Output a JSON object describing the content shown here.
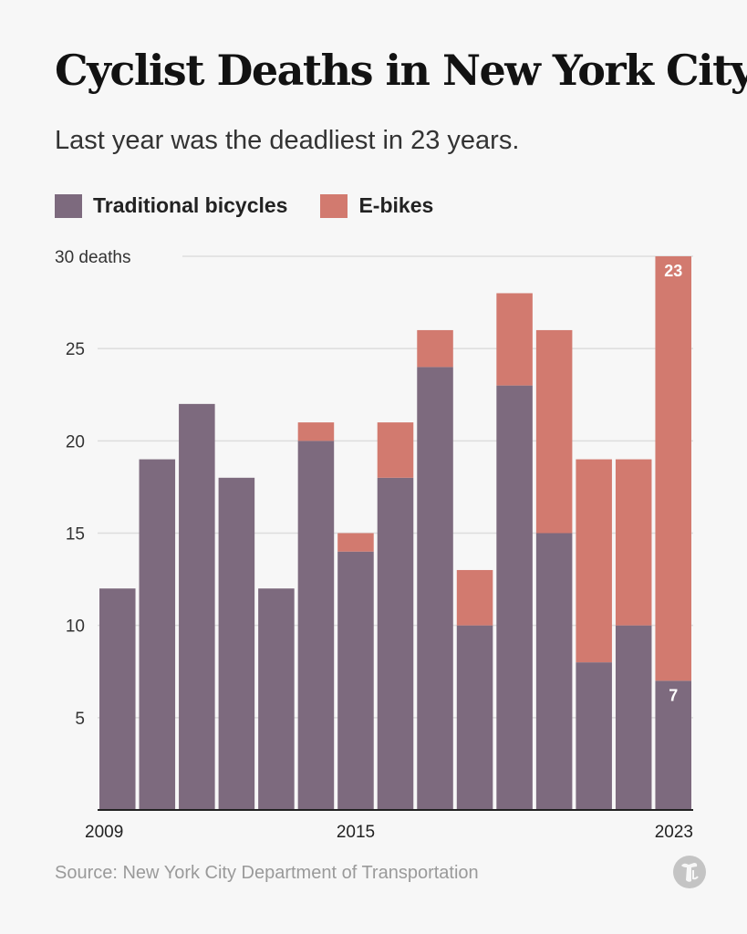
{
  "title": "Cyclist Deaths in New York City",
  "subtitle": "Last year was the deadliest in 23 years.",
  "legend": [
    {
      "label": "Traditional bicycles",
      "color": "#7d6a7e"
    },
    {
      "label": "E-bikes",
      "color": "#d27a6f"
    }
  ],
  "source": "Source: New York City Department of Transportation",
  "logo_icon": "nyt-t-logo-icon",
  "chart_data": {
    "type": "bar",
    "stacked": true,
    "categories": [
      2009,
      2010,
      2011,
      2012,
      2013,
      2014,
      2015,
      2016,
      2017,
      2018,
      2019,
      2020,
      2021,
      2022,
      2023
    ],
    "x_tick_labels": [
      "2009",
      "2015",
      "2023"
    ],
    "series": [
      {
        "name": "Traditional bicycles",
        "color": "#7d6a7e",
        "values": [
          12,
          19,
          22,
          18,
          12,
          20,
          14,
          18,
          24,
          10,
          23,
          15,
          8,
          10,
          7
        ]
      },
      {
        "name": "E-bikes",
        "color": "#d27a6f",
        "values": [
          0,
          0,
          0,
          0,
          0,
          1,
          1,
          3,
          2,
          3,
          5,
          11,
          11,
          9,
          23
        ]
      }
    ],
    "ylim": [
      0,
      30
    ],
    "y_ticks": [
      {
        "value": 5,
        "label": "5"
      },
      {
        "value": 10,
        "label": "10"
      },
      {
        "value": 15,
        "label": "15"
      },
      {
        "value": 20,
        "label": "20"
      },
      {
        "value": 25,
        "label": "25"
      },
      {
        "value": 30,
        "label": "30 deaths"
      }
    ],
    "data_labels": [
      {
        "category": 2023,
        "series": "E-bikes",
        "text": "23"
      },
      {
        "category": 2023,
        "series": "Traditional bicycles",
        "text": "7"
      }
    ],
    "grid": true
  }
}
